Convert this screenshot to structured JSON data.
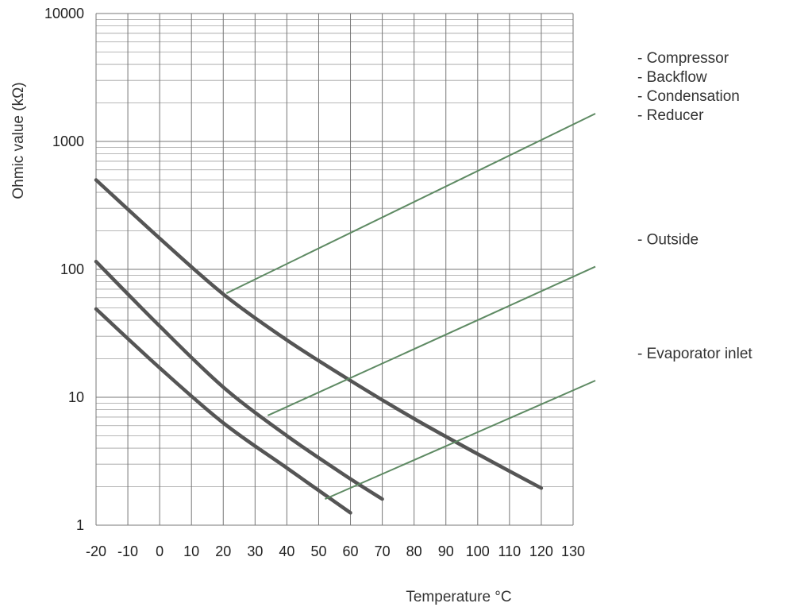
{
  "chart_data": {
    "type": "line",
    "xlabel": "Temperature °C",
    "ylabel": "Ohmic value (kΩ)",
    "yscale": "log",
    "xlim": [
      -20,
      130
    ],
    "ylim": [
      1,
      10000
    ],
    "grid": true,
    "x_ticks": [
      "-20",
      "-10",
      "0",
      "10",
      "20",
      "30",
      "40",
      "50",
      "60",
      "70",
      "80",
      "90",
      "100",
      "110",
      "120",
      "130"
    ],
    "y_ticks": [
      "1",
      "10",
      "100",
      "1000",
      "10000"
    ],
    "series": [
      {
        "x": [
          -20,
          0,
          20,
          40,
          60,
          80,
          100,
          120
        ],
        "y": [
          500,
          175,
          64,
          28,
          13.5,
          6.8,
          3.6,
          1.95
        ]
      },
      {
        "x": [
          -20,
          0,
          20,
          40,
          60,
          70
        ],
        "y": [
          115,
          36,
          12,
          5,
          2.3,
          1.6
        ]
      },
      {
        "x": [
          -20,
          0,
          20,
          40,
          60
        ],
        "y": [
          49,
          17,
          6.3,
          2.8,
          1.25
        ]
      }
    ],
    "annotations": [
      {
        "labels": [
          "- Compressor",
          "- Backflow",
          "- Condensation",
          "- Reducer"
        ],
        "line_from": [
          21,
          65
        ],
        "line_to": [
          137,
          1650
        ]
      },
      {
        "labels": [
          "- Outside"
        ],
        "line_from": [
          34,
          7.2
        ],
        "line_to": [
          137,
          105
        ]
      },
      {
        "labels": [
          "- Evaporator inlet"
        ],
        "line_from": [
          52,
          1.6
        ],
        "line_to": [
          137,
          13.5
        ]
      }
    ],
    "colors": {
      "curve": "#555555",
      "leader": "#5e8a63",
      "grid": "#777777",
      "grid_minor": "#a0a0a0"
    }
  }
}
